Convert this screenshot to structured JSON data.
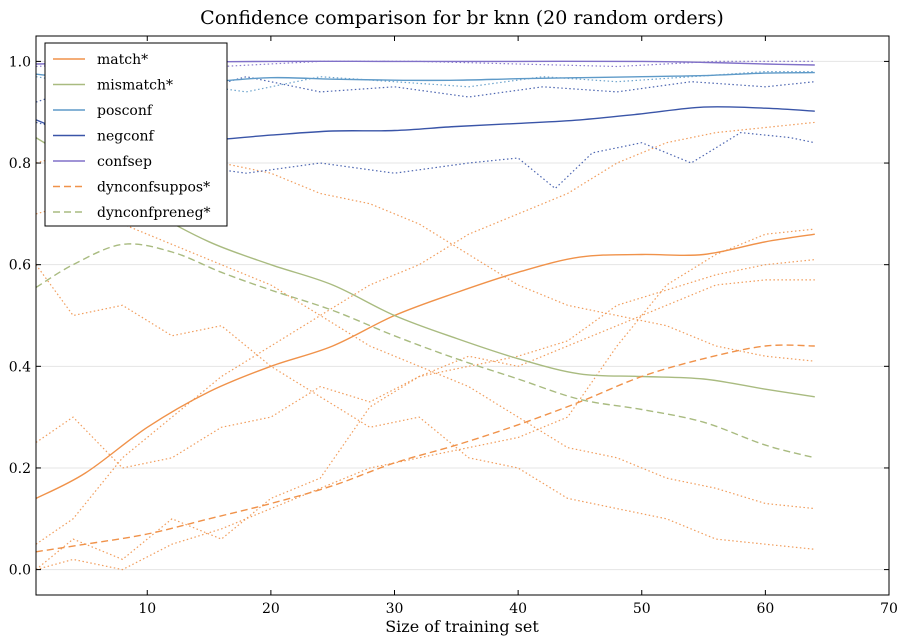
{
  "chart_data": {
    "type": "line",
    "title": "Confidence comparison for br knn (20 random orders)",
    "xlabel": "Size of training set",
    "ylabel": "",
    "xlim": [
      1,
      70
    ],
    "ylim": [
      -0.05,
      1.05
    ],
    "xticks": [
      10,
      20,
      30,
      40,
      50,
      60,
      70
    ],
    "yticks": [
      0.0,
      0.2,
      0.4,
      0.6,
      0.8,
      1.0
    ],
    "ytick_labels": [
      "0.0",
      "0.2",
      "0.4",
      "0.6",
      "0.8",
      "1.0"
    ],
    "grid": "horizontal",
    "legend_position": "top-left",
    "series": [
      {
        "name": "match*",
        "color": "#f0924a",
        "style": "solid",
        "x": [
          1,
          5,
          10,
          15,
          20,
          25,
          30,
          35,
          40,
          45,
          50,
          55,
          60,
          64
        ],
        "y": [
          0.14,
          0.19,
          0.28,
          0.35,
          0.4,
          0.44,
          0.5,
          0.545,
          0.585,
          0.615,
          0.62,
          0.62,
          0.645,
          0.66
        ]
      },
      {
        "name": "mismatch*",
        "color": "#a9bb80",
        "style": "solid",
        "x": [
          1,
          5,
          10,
          15,
          20,
          25,
          30,
          35,
          40,
          45,
          50,
          55,
          60,
          64
        ],
        "y": [
          0.85,
          0.79,
          0.71,
          0.645,
          0.6,
          0.56,
          0.5,
          0.455,
          0.415,
          0.385,
          0.38,
          0.375,
          0.355,
          0.34
        ]
      },
      {
        "name": "posconf",
        "color": "#5e9ac8",
        "style": "solid",
        "x": [
          1,
          5,
          10,
          15,
          20,
          25,
          30,
          35,
          40,
          45,
          50,
          55,
          60,
          64
        ],
        "y": [
          0.975,
          0.965,
          0.955,
          0.96,
          0.968,
          0.965,
          0.963,
          0.963,
          0.966,
          0.968,
          0.97,
          0.972,
          0.977,
          0.978
        ]
      },
      {
        "name": "negconf",
        "color": "#3a55a8",
        "style": "solid",
        "x": [
          1,
          5,
          10,
          15,
          20,
          25,
          30,
          35,
          40,
          45,
          50,
          55,
          60,
          64
        ],
        "y": [
          0.885,
          0.85,
          0.84,
          0.845,
          0.855,
          0.863,
          0.864,
          0.872,
          0.878,
          0.885,
          0.897,
          0.91,
          0.908,
          0.902
        ]
      },
      {
        "name": "confsep",
        "color": "#8070c8",
        "style": "solid",
        "x": [
          1,
          10,
          20,
          30,
          40,
          50,
          55,
          60,
          64
        ],
        "y": [
          0.995,
          0.998,
          1.0,
          1.0,
          1.0,
          1.0,
          0.998,
          0.995,
          0.993
        ]
      },
      {
        "name": "dynconfsuppos*",
        "color": "#f0924a",
        "style": "dashed",
        "x": [
          1,
          5,
          10,
          15,
          20,
          25,
          30,
          35,
          40,
          45,
          50,
          55,
          60,
          64
        ],
        "y": [
          0.035,
          0.05,
          0.07,
          0.1,
          0.13,
          0.165,
          0.21,
          0.245,
          0.285,
          0.33,
          0.38,
          0.415,
          0.44,
          0.44
        ]
      },
      {
        "name": "dynconfpreneg*",
        "color": "#a9bb80",
        "style": "dashed",
        "x": [
          1,
          4,
          8,
          12,
          16,
          20,
          25,
          30,
          35,
          40,
          45,
          50,
          55,
          60,
          64
        ],
        "y": [
          0.555,
          0.6,
          0.64,
          0.625,
          0.585,
          0.55,
          0.51,
          0.46,
          0.415,
          0.375,
          0.335,
          0.315,
          0.29,
          0.245,
          0.22
        ]
      }
    ],
    "trials": [
      {
        "color": "#f0924a",
        "x": [
          1,
          4,
          8,
          12,
          16,
          20,
          24,
          28,
          32,
          36,
          40,
          44,
          48,
          52,
          56,
          60,
          64
        ],
        "y": [
          0.0,
          0.06,
          0.02,
          0.1,
          0.06,
          0.14,
          0.18,
          0.32,
          0.38,
          0.4,
          0.42,
          0.45,
          0.52,
          0.55,
          0.58,
          0.6,
          0.61
        ]
      },
      {
        "color": "#f0924a",
        "x": [
          1,
          4,
          8,
          12,
          16,
          20,
          24,
          28,
          32,
          36,
          40,
          44,
          48,
          52,
          56,
          60,
          64
        ],
        "y": [
          0.25,
          0.3,
          0.2,
          0.22,
          0.28,
          0.3,
          0.36,
          0.33,
          0.38,
          0.42,
          0.4,
          0.44,
          0.48,
          0.52,
          0.56,
          0.57,
          0.57
        ]
      },
      {
        "color": "#f0924a",
        "x": [
          1,
          4,
          8,
          12,
          16,
          20,
          24,
          28,
          32,
          36,
          40,
          44,
          48,
          52,
          56,
          60,
          64
        ],
        "y": [
          0.6,
          0.5,
          0.52,
          0.46,
          0.48,
          0.4,
          0.34,
          0.28,
          0.3,
          0.22,
          0.2,
          0.14,
          0.12,
          0.1,
          0.06,
          0.05,
          0.04
        ]
      },
      {
        "color": "#f0924a",
        "x": [
          1,
          4,
          8,
          12,
          16,
          20,
          24,
          28,
          32,
          36,
          40,
          44,
          48,
          52,
          56,
          60,
          64
        ],
        "y": [
          0.7,
          0.72,
          0.68,
          0.64,
          0.6,
          0.56,
          0.5,
          0.44,
          0.4,
          0.36,
          0.3,
          0.24,
          0.22,
          0.18,
          0.16,
          0.13,
          0.12
        ]
      },
      {
        "color": "#f0924a",
        "x": [
          1,
          4,
          8,
          12,
          16,
          20,
          24,
          28,
          32,
          36,
          40,
          44,
          48,
          52,
          56,
          60,
          64
        ],
        "y": [
          0.05,
          0.1,
          0.22,
          0.3,
          0.38,
          0.44,
          0.5,
          0.56,
          0.6,
          0.66,
          0.7,
          0.74,
          0.8,
          0.84,
          0.86,
          0.87,
          0.88
        ]
      },
      {
        "color": "#f0924a",
        "x": [
          1,
          4,
          8,
          12,
          16,
          20,
          24,
          28,
          32,
          36,
          40,
          44,
          48,
          52,
          56,
          60,
          64
        ],
        "y": [
          0.8,
          0.82,
          0.78,
          0.76,
          0.8,
          0.78,
          0.74,
          0.72,
          0.68,
          0.62,
          0.56,
          0.52,
          0.5,
          0.48,
          0.44,
          0.42,
          0.41
        ]
      },
      {
        "color": "#f0924a",
        "x": [
          1,
          4,
          8,
          12,
          16,
          20,
          24,
          28,
          32,
          36,
          40,
          44,
          48,
          52,
          56,
          60,
          64
        ],
        "y": [
          0.0,
          0.02,
          0.0,
          0.05,
          0.08,
          0.12,
          0.16,
          0.2,
          0.22,
          0.24,
          0.26,
          0.3,
          0.44,
          0.56,
          0.62,
          0.66,
          0.67
        ]
      },
      {
        "color": "#5e9ac8",
        "x": [
          1,
          6,
          12,
          18,
          24,
          30,
          36,
          42,
          48,
          54,
          60,
          64
        ],
        "y": [
          0.97,
          0.95,
          0.96,
          0.94,
          0.97,
          0.96,
          0.95,
          0.97,
          0.96,
          0.97,
          0.98,
          0.98
        ]
      },
      {
        "color": "#3a55a8",
        "x": [
          1,
          6,
          12,
          18,
          24,
          30,
          36,
          40,
          43,
          46,
          50,
          54,
          58,
          62,
          64
        ],
        "y": [
          0.88,
          0.85,
          0.8,
          0.78,
          0.8,
          0.78,
          0.8,
          0.81,
          0.75,
          0.82,
          0.84,
          0.8,
          0.86,
          0.85,
          0.84
        ]
      },
      {
        "color": "#3a55a8",
        "x": [
          1,
          6,
          12,
          18,
          24,
          30,
          36,
          42,
          48,
          54,
          60,
          64
        ],
        "y": [
          0.92,
          0.96,
          0.93,
          0.97,
          0.94,
          0.95,
          0.93,
          0.95,
          0.94,
          0.96,
          0.95,
          0.96
        ]
      },
      {
        "color": "#8070c8",
        "x": [
          1,
          8,
          16,
          24,
          32,
          40,
          48,
          56,
          64
        ],
        "y": [
          0.99,
          1.0,
          0.99,
          1.0,
          1.0,
          0.995,
          0.99,
          1.0,
          1.0
        ]
      }
    ]
  }
}
